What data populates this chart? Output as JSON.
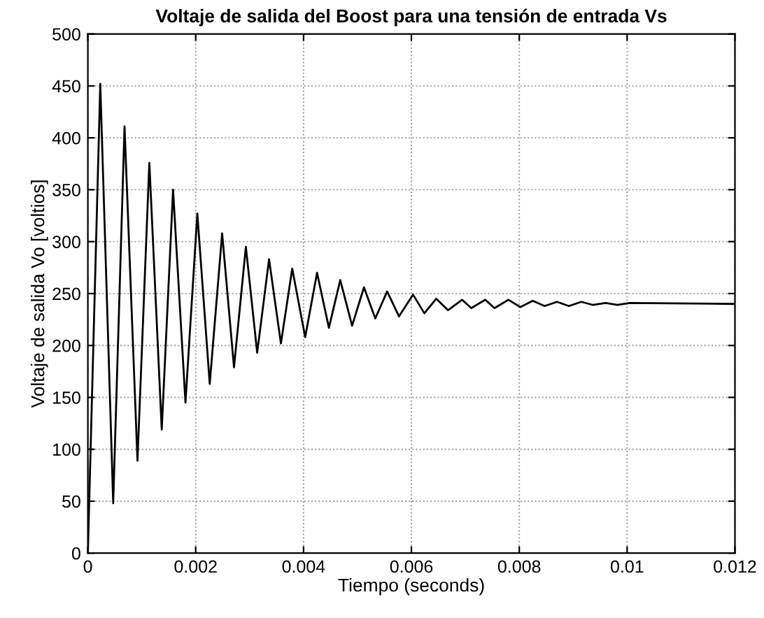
{
  "chart_data": {
    "type": "line",
    "title": "Voltaje de salida del Boost para una tensión de entrada Vs",
    "xlabel": "Tiempo (seconds)",
    "ylabel": "Voltaje de salida Vo [voltios]",
    "xlim": [
      0,
      0.012
    ],
    "ylim": [
      0,
      500
    ],
    "xticks": [
      0,
      0.002,
      0.004,
      0.006,
      0.008,
      0.01,
      0.012
    ],
    "yticks": [
      0,
      50,
      100,
      150,
      200,
      250,
      300,
      350,
      400,
      450,
      500
    ],
    "grid": true,
    "legend": false,
    "marker": "none",
    "line_style": "solid",
    "series": [
      {
        "color": "#000000",
        "x": [
          0,
          0.00023,
          0.00047,
          0.00068,
          0.00092,
          0.00114,
          0.00137,
          0.00158,
          0.00181,
          0.00203,
          0.00226,
          0.00249,
          0.00271,
          0.00293,
          0.00314,
          0.00336,
          0.00358,
          0.00379,
          0.00403,
          0.00425,
          0.00447,
          0.00468,
          0.0049,
          0.00512,
          0.00533,
          0.00555,
          0.00577,
          0.00603,
          0.00624,
          0.00646,
          0.00668,
          0.00694,
          0.00711,
          0.00737,
          0.00754,
          0.0078,
          0.00802,
          0.00825,
          0.00847,
          0.0087,
          0.00892,
          0.00915,
          0.00937,
          0.0096,
          0.00982,
          0.01005,
          0.012
        ],
        "values": [
          0,
          452,
          48,
          411,
          89,
          376,
          119,
          350,
          145,
          327,
          163,
          308,
          179,
          295,
          193,
          283,
          202,
          274,
          208,
          270,
          217,
          263,
          219,
          256,
          226,
          252,
          228,
          249,
          231,
          245,
          234,
          244,
          236,
          244,
          236,
          244,
          237,
          243,
          238,
          242,
          238,
          242,
          239,
          241,
          239,
          241,
          240
        ]
      }
    ]
  }
}
